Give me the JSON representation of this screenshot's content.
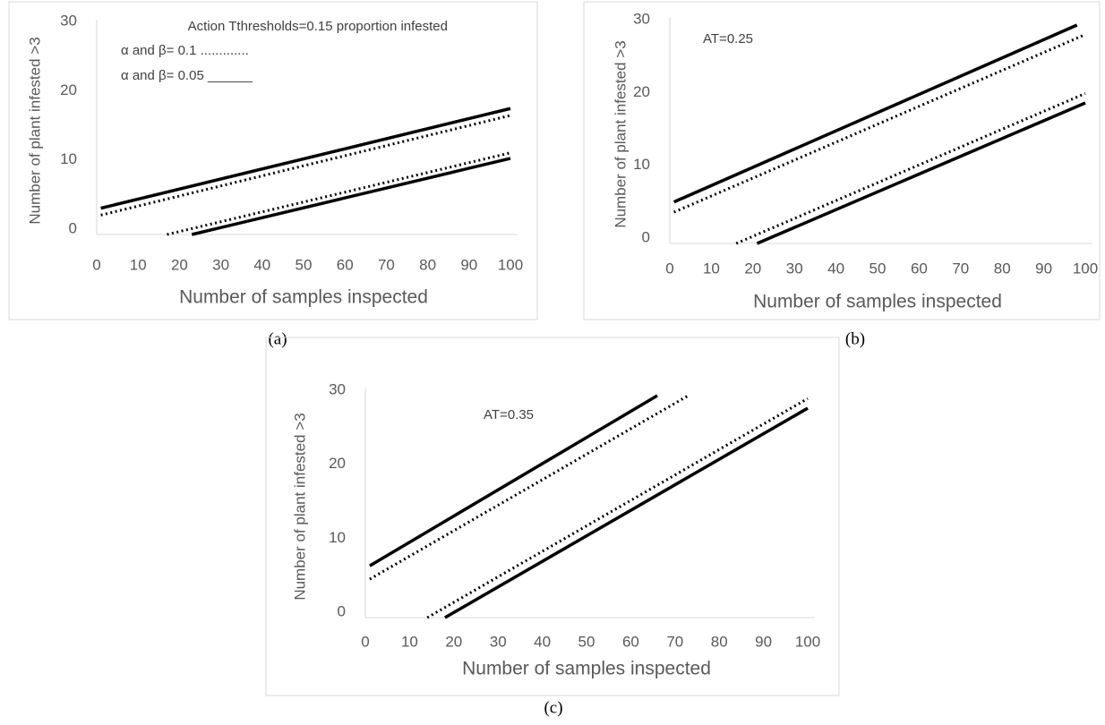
{
  "chart_data": [
    {
      "type": "line",
      "caption": "(a)",
      "xlabel": "Number of  samples inspected",
      "ylabel": "Number of plant infested >3",
      "annotations": [
        "Action Tthresholds=0.15 proportion infested",
        "α and β= 0.1 .............",
        "α and β= 0.05 ______"
      ],
      "xlim": [
        0,
        100
      ],
      "xticks": [
        0,
        10,
        20,
        30,
        40,
        50,
        60,
        70,
        80,
        90,
        100
      ],
      "ylim": [
        0,
        30
      ],
      "yticks": [
        0,
        10,
        20,
        30
      ],
      "grid": false,
      "series": [
        {
          "color": "#000000",
          "style": "solid",
          "x": [
            1,
            100
          ],
          "values": [
            3.8,
            18.2
          ]
        },
        {
          "color": "#000000",
          "style": "dotted",
          "x": [
            1,
            100
          ],
          "values": [
            2.8,
            17.2
          ]
        },
        {
          "color": "#000000",
          "style": "dotted",
          "x": [
            17,
            100
          ],
          "values": [
            0,
            11.8
          ]
        },
        {
          "color": "#000000",
          "style": "solid",
          "x": [
            23,
            100
          ],
          "values": [
            0,
            11
          ]
        }
      ]
    },
    {
      "type": "line",
      "caption": "(b)",
      "xlabel": "Number of  samples inspected",
      "ylabel": "Number of plant infested >3",
      "annotations": [
        "AT=0.25"
      ],
      "xlim": [
        0,
        100
      ],
      "xticks": [
        0,
        10,
        20,
        30,
        40,
        50,
        60,
        70,
        80,
        90,
        100
      ],
      "ylim": [
        0,
        30
      ],
      "yticks": [
        0,
        10,
        20,
        30
      ],
      "grid": false,
      "series": [
        {
          "color": "#000000",
          "style": "solid",
          "x": [
            1,
            98
          ],
          "values": [
            5.7,
            30
          ]
        },
        {
          "color": "#000000",
          "style": "dotted",
          "x": [
            1,
            100
          ],
          "values": [
            4.3,
            28.7
          ]
        },
        {
          "color": "#000000",
          "style": "dotted",
          "x": [
            16,
            100
          ],
          "values": [
            0,
            20.6
          ]
        },
        {
          "color": "#000000",
          "style": "solid",
          "x": [
            21,
            100
          ],
          "values": [
            0,
            19.3
          ]
        }
      ]
    },
    {
      "type": "line",
      "caption": "(c)",
      "xlabel": "Number of  samples inspected",
      "ylabel": "Number of plant infested >3",
      "annotations": [
        "AT=0.35"
      ],
      "xlim": [
        0,
        100
      ],
      "xticks": [
        0,
        10,
        20,
        30,
        40,
        50,
        60,
        70,
        80,
        90,
        100
      ],
      "ylim": [
        0,
        30
      ],
      "yticks": [
        0,
        10,
        20,
        30
      ],
      "grid": false,
      "series": [
        {
          "color": "#000000",
          "style": "solid",
          "x": [
            1,
            66
          ],
          "values": [
            7,
            30
          ]
        },
        {
          "color": "#000000",
          "style": "dotted",
          "x": [
            1,
            73
          ],
          "values": [
            5.2,
            30
          ]
        },
        {
          "color": "#000000",
          "style": "dotted",
          "x": [
            14,
            100
          ],
          "values": [
            0,
            29.6
          ]
        },
        {
          "color": "#000000",
          "style": "solid",
          "x": [
            18,
            100
          ],
          "values": [
            0,
            28.3
          ]
        }
      ]
    }
  ]
}
